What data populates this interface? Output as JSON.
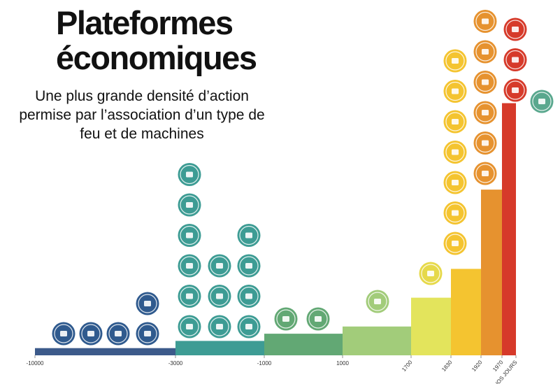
{
  "header": {
    "title_line1": "Plateformes",
    "title_line2": "économiques",
    "subtitle": "Une plus grande densité d’action permise par l’association d’un type de feu et de machines"
  },
  "chart_data": {
    "type": "bar",
    "title": "Plateformes économiques",
    "subtitle": "Une plus grande densité d’action permise par l’association d’un type de feu et de machines",
    "xlabel": "",
    "ylabel": "",
    "grid": false,
    "x_ticks": [
      "-10000",
      "-3000",
      "-1000",
      "1000",
      "1700",
      "1830",
      "1920",
      "1970",
      "NOS JOURS"
    ],
    "steps": [
      {
        "from": "-10000",
        "to": "-3000",
        "level": 1,
        "color": "#3c5a8a",
        "icons": [
          [
            "flint-icon",
            "wood-pile-icon",
            "campfire-icon",
            "bow-icon"
          ],
          [
            "hand-fruit-icon"
          ]
        ]
      },
      {
        "from": "-3000",
        "to": "-1000",
        "level": 2,
        "color": "#3d9c94",
        "icons": [
          [
            "pottery-icon",
            "copper-ingot-icon",
            "iron-ingot-icon",
            "bronze-ingot-icon",
            "silver-ingot-icon",
            "horseshoe-icon"
          ],
          [
            "sun-icon",
            "ox-icon",
            "wheat-icon"
          ],
          [
            "building-icon",
            "cart-icon",
            "brick-wall-icon",
            "ship-icon"
          ]
        ]
      },
      {
        "from": "-1000",
        "to": "1000",
        "level": 3,
        "color": "#62a874",
        "icons": [
          [
            "waterwheel-icon"
          ],
          [
            "windmill-icon"
          ]
        ]
      },
      {
        "from": "1000",
        "to": "1700",
        "level": 4,
        "color": "#a2cc7a",
        "icons": [
          [
            "charcoal-icon"
          ]
        ]
      },
      {
        "from": "1700",
        "to": "1830",
        "level": 8,
        "color": "#e3e45c",
        "icons": [
          [
            "coal-icon"
          ]
        ]
      },
      {
        "from": "1830",
        "to": "1920",
        "level": 12,
        "color": "#f4c430",
        "icons": [
          [
            "coal-heap-icon",
            "blast-furnace-icon",
            "steam-locomotive-icon",
            "tractor-icon",
            "lightning-icon",
            "light-bulb-icon",
            "rail-icon"
          ]
        ]
      },
      {
        "from": "1920",
        "to": "1970",
        "level": 23,
        "color": "#e6922f",
        "icons": [
          [
            "barrel-icon",
            "gas-bottle-icon",
            "flask-icon",
            "car-icon",
            "farm-tractor-icon",
            "oil-drop-icon"
          ]
        ]
      },
      {
        "from": "1970",
        "to": "NOS JOURS",
        "level": 35,
        "color": "#d63a2a",
        "icons": [
          [
            "atom-icon",
            "computer-icon",
            "satellite-icon"
          ]
        ]
      },
      {
        "from": "NOS JOURS",
        "to": "",
        "level": 0,
        "color": "#5aa88e",
        "icons": [
          [
            "wind-solar-icon"
          ]
        ]
      }
    ]
  }
}
